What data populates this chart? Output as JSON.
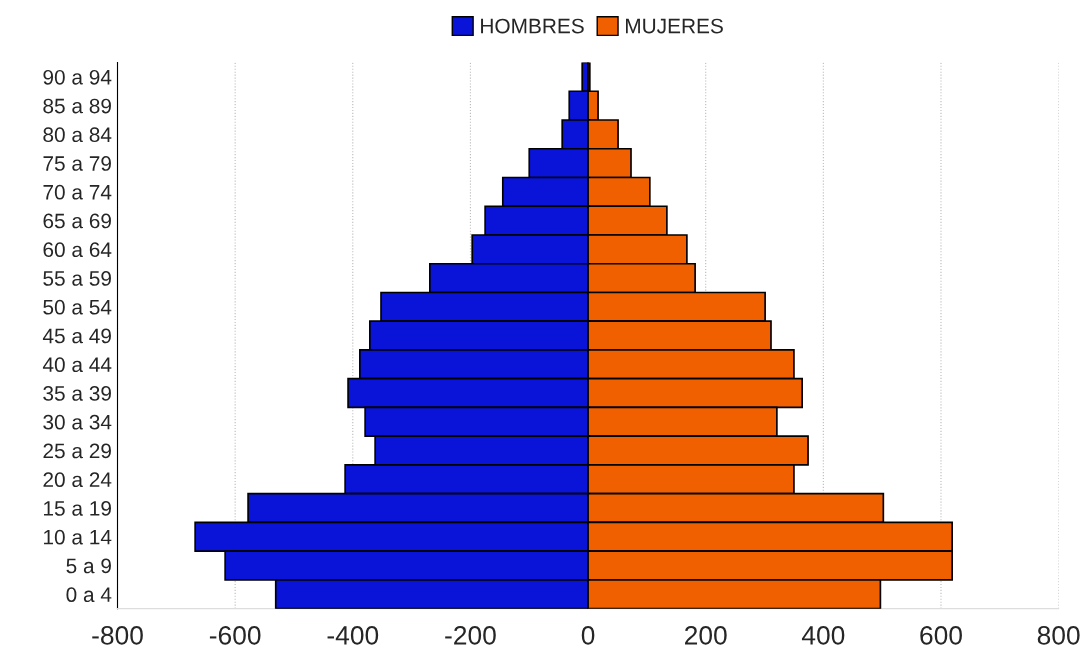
{
  "chart_data": {
    "type": "bar",
    "orientation": "horizontal",
    "stacked": true,
    "categories": [
      "90 a 94",
      "85 a 89",
      "80 a 84",
      "75 a 79",
      "70 a 74",
      "65 a 69",
      "60 a 64",
      "55 a 59",
      "50 a 54",
      "45 a 49",
      "40 a 44",
      "35 a 39",
      "30 a 34",
      "25 a 29",
      "20 a 24",
      "15 a 19",
      "10 a 14",
      "5 a 9",
      "0 a 4"
    ],
    "series": [
      {
        "name": "HOMBRES",
        "color": "#0a14d8",
        "values": [
          -10,
          -32,
          -44,
          -100,
          -145,
          -175,
          -197,
          -269,
          -352,
          -371,
          -388,
          -408,
          -379,
          -362,
          -413,
          -578,
          -668,
          -617,
          -531
        ]
      },
      {
        "name": "MUJERES",
        "color": "#f06000",
        "values": [
          3,
          17,
          51,
          73,
          105,
          134,
          168,
          182,
          301,
          311,
          350,
          364,
          321,
          374,
          350,
          502,
          619,
          619,
          497
        ]
      }
    ],
    "xlim": [
      -800,
      800
    ],
    "xticks": [
      -800,
      -600,
      -400,
      -200,
      0,
      200,
      400,
      600,
      800
    ],
    "grid": "x",
    "legend": "top"
  }
}
